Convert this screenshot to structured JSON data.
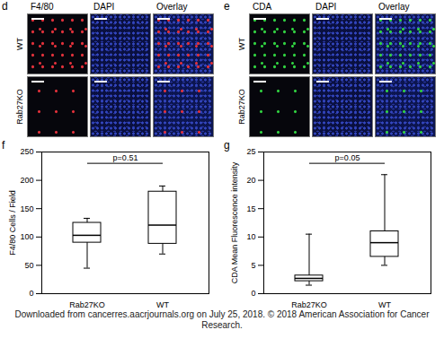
{
  "panels": [
    {
      "letter": "d",
      "columns": [
        "F4/80",
        "DAPI",
        "Overlay"
      ],
      "rows": [
        "WT",
        "Rab27KO"
      ],
      "color": "#e0303a"
    },
    {
      "letter": "e",
      "columns": [
        "CDA",
        "DAPI",
        "Overlay"
      ],
      "rows": [
        "WT",
        "Rab27KO"
      ],
      "color": "#30d040"
    }
  ],
  "chart_data": [
    {
      "letter": "f",
      "type": "box",
      "categories": [
        "Rab27KO",
        "WT"
      ],
      "y_label": "F4/80 Cells / Field",
      "ylim": [
        0,
        250
      ],
      "yticks": [
        0,
        50,
        100,
        150,
        200,
        250
      ],
      "min": [
        45,
        70
      ],
      "q1": [
        90,
        88
      ],
      "median": [
        103,
        121
      ],
      "q3": [
        125,
        180
      ],
      "max": [
        133,
        190
      ],
      "annotation": "p=0.51",
      "color": "#000000"
    },
    {
      "letter": "g",
      "type": "box",
      "categories": [
        "Rab27KO",
        "WT"
      ],
      "y_label": "CDA Mean Fluorescence intensity",
      "ylim": [
        0,
        25
      ],
      "yticks": [
        0,
        5,
        10,
        15,
        20,
        25
      ],
      "min": [
        1.5,
        5
      ],
      "q1": [
        2.2,
        6.5
      ],
      "median": [
        2.7,
        9
      ],
      "q3": [
        3.2,
        11
      ],
      "max": [
        10.5,
        21
      ],
      "annotation": "p=0.05",
      "color": "#000000"
    }
  ],
  "footer": "Downloaded from cancerres.aacrjournals.org on July 25, 2018. © 2018 American Association for Cancer Research."
}
